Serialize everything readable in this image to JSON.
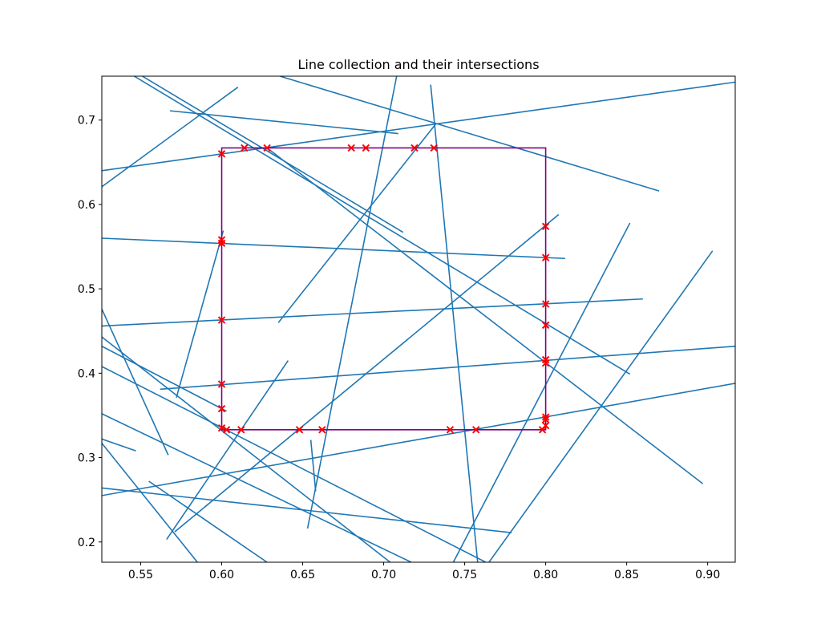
{
  "chart_data": {
    "type": "line",
    "title": "Line collection and their intersections",
    "xlabel": "",
    "ylabel": "",
    "xlim": [
      0.526,
      0.917
    ],
    "ylim": [
      0.176,
      0.752
    ],
    "grid": false,
    "xticks": [
      "0.55",
      "0.60",
      "0.65",
      "0.70",
      "0.75",
      "0.80",
      "0.85",
      "0.90"
    ],
    "yticks": [
      "0.2",
      "0.3",
      "0.4",
      "0.5",
      "0.6",
      "0.7"
    ],
    "colors": {
      "lines": "#1f77b4",
      "rectangle": "#800080",
      "markers": "#ff0000"
    },
    "rectangle": {
      "x0": 0.6,
      "x1": 0.8,
      "y0": 0.333,
      "y1": 0.667
    },
    "segments": [
      [
        0.526,
        0.621,
        0.61,
        0.739
      ],
      [
        0.526,
        0.64,
        0.917,
        0.745
      ],
      [
        0.568,
        0.711,
        0.709,
        0.684
      ],
      [
        0.551,
        0.752,
        0.712,
        0.567
      ],
      [
        0.636,
        0.752,
        0.87,
        0.616
      ],
      [
        0.546,
        0.752,
        0.852,
        0.399
      ],
      [
        0.635,
        0.46,
        0.732,
        0.695
      ],
      [
        0.653,
        0.216,
        0.708,
        0.752
      ],
      [
        0.729,
        0.742,
        0.758,
        0.176
      ],
      [
        0.526,
        0.56,
        0.812,
        0.536
      ],
      [
        0.572,
        0.371,
        0.601,
        0.569
      ],
      [
        0.526,
        0.456,
        0.86,
        0.488
      ],
      [
        0.562,
        0.381,
        0.917,
        0.432
      ],
      [
        0.526,
        0.255,
        0.917,
        0.388
      ],
      [
        0.526,
        0.264,
        0.779,
        0.211
      ],
      [
        0.566,
        0.203,
        0.641,
        0.415
      ],
      [
        0.571,
        0.212,
        0.808,
        0.588
      ],
      [
        0.526,
        0.476,
        0.567,
        0.303
      ],
      [
        0.526,
        0.432,
        0.603,
        0.355
      ],
      [
        0.526,
        0.443,
        0.704,
        0.176
      ],
      [
        0.526,
        0.408,
        0.763,
        0.176
      ],
      [
        0.526,
        0.352,
        0.717,
        0.176
      ],
      [
        0.526,
        0.322,
        0.547,
        0.308
      ],
      [
        0.526,
        0.317,
        0.585,
        0.176
      ],
      [
        0.555,
        0.272,
        0.628,
        0.176
      ],
      [
        0.743,
        0.176,
        0.852,
        0.578
      ],
      [
        0.765,
        0.176,
        0.903,
        0.545
      ],
      [
        0.628,
        0.667,
        0.897,
        0.269
      ],
      [
        0.655,
        0.321,
        0.658,
        0.26
      ]
    ],
    "intersections": [
      [
        0.614,
        0.667
      ],
      [
        0.628,
        0.667
      ],
      [
        0.68,
        0.667
      ],
      [
        0.689,
        0.667
      ],
      [
        0.719,
        0.667
      ],
      [
        0.731,
        0.667
      ],
      [
        0.6,
        0.66
      ],
      [
        0.6,
        0.558
      ],
      [
        0.6,
        0.554
      ],
      [
        0.6,
        0.463
      ],
      [
        0.6,
        0.387
      ],
      [
        0.6,
        0.358
      ],
      [
        0.6,
        0.335
      ],
      [
        0.603,
        0.333
      ],
      [
        0.612,
        0.333
      ],
      [
        0.648,
        0.333
      ],
      [
        0.662,
        0.333
      ],
      [
        0.741,
        0.333
      ],
      [
        0.757,
        0.333
      ],
      [
        0.798,
        0.333
      ],
      [
        0.8,
        0.574
      ],
      [
        0.8,
        0.537
      ],
      [
        0.8,
        0.482
      ],
      [
        0.8,
        0.457
      ],
      [
        0.8,
        0.416
      ],
      [
        0.8,
        0.412
      ],
      [
        0.8,
        0.348
      ],
      [
        0.8,
        0.345
      ],
      [
        0.8,
        0.338
      ]
    ]
  }
}
